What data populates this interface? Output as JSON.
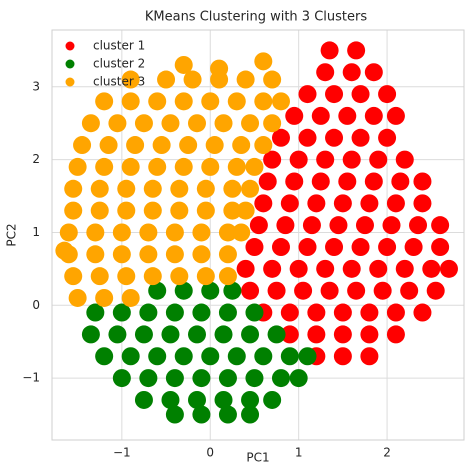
{
  "chart_data": {
    "type": "scatter",
    "title": "KMeans Clustering with 3 Clusters",
    "x_label": "PC1",
    "y_label": "PC2",
    "xlim": [
      -1.79,
      2.87
    ],
    "ylim": [
      -1.85,
      3.78
    ],
    "xticks": [
      {
        "value": -1,
        "label": "−1"
      },
      0,
      1,
      2
    ],
    "yticks": [
      {
        "value": -1,
        "label": "−1"
      },
      0,
      1,
      2,
      3
    ],
    "grid": true,
    "legend": "upper-left",
    "series": [
      {
        "name": "cluster 1",
        "color": "#ff0000",
        "x": [
          1.2,
          1.5,
          1.8,
          0.9,
          1.2,
          1.5,
          1.8,
          2.1,
          0.6,
          0.9,
          1.2,
          1.5,
          1.8,
          2.1,
          2.4,
          0.45,
          0.75,
          1.05,
          1.35,
          1.65,
          1.95,
          2.25,
          2.55,
          0.4,
          0.7,
          1.0,
          1.3,
          1.6,
          1.9,
          2.2,
          2.5,
          2.7,
          0.5,
          0.8,
          1.1,
          1.4,
          1.7,
          2.0,
          2.3,
          2.6,
          0.55,
          0.85,
          1.15,
          1.45,
          1.75,
          2.05,
          2.35,
          2.6,
          0.6,
          0.9,
          1.2,
          1.5,
          1.8,
          2.1,
          2.4,
          0.65,
          0.95,
          1.25,
          1.55,
          1.85,
          2.15,
          2.4,
          0.7,
          1.0,
          1.3,
          1.6,
          1.9,
          2.2,
          0.8,
          1.1,
          1.4,
          1.7,
          2.0,
          0.95,
          1.25,
          1.55,
          1.85,
          2.1,
          1.1,
          1.4,
          1.7,
          2.0,
          1.3,
          1.6,
          1.85,
          1.35,
          1.65
        ],
        "y": [
          -0.7,
          -0.7,
          -0.7,
          -0.4,
          -0.4,
          -0.4,
          -0.4,
          -0.4,
          -0.1,
          -0.1,
          -0.1,
          -0.1,
          -0.1,
          -0.1,
          -0.1,
          0.2,
          0.2,
          0.2,
          0.2,
          0.2,
          0.2,
          0.2,
          0.2,
          0.5,
          0.5,
          0.5,
          0.5,
          0.5,
          0.5,
          0.5,
          0.5,
          0.5,
          0.8,
          0.8,
          0.8,
          0.8,
          0.8,
          0.8,
          0.8,
          0.8,
          1.1,
          1.1,
          1.1,
          1.1,
          1.1,
          1.1,
          1.1,
          1.1,
          1.4,
          1.4,
          1.4,
          1.4,
          1.4,
          1.4,
          1.4,
          1.7,
          1.7,
          1.7,
          1.7,
          1.7,
          1.7,
          1.7,
          2.0,
          2.0,
          2.0,
          2.0,
          2.0,
          2.0,
          2.3,
          2.3,
          2.3,
          2.3,
          2.3,
          2.6,
          2.6,
          2.6,
          2.6,
          2.6,
          2.9,
          2.9,
          2.9,
          2.9,
          3.2,
          3.2,
          3.2,
          3.5,
          3.5
        ]
      },
      {
        "name": "cluster 2",
        "color": "#008000",
        "x": [
          -0.6,
          -0.3,
          0.0,
          0.25,
          -1.3,
          -1.0,
          -0.7,
          -0.4,
          -0.1,
          0.2,
          0.5,
          -1.35,
          -1.05,
          -0.75,
          -0.45,
          -0.15,
          0.15,
          0.45,
          0.75,
          -1.2,
          -0.9,
          -0.6,
          -0.3,
          0.0,
          0.3,
          0.6,
          0.9,
          1.1,
          -1.0,
          -0.7,
          -0.4,
          -0.1,
          0.2,
          0.5,
          0.8,
          1.0,
          -0.75,
          -0.45,
          -0.15,
          0.15,
          0.45,
          0.7,
          -0.4,
          -0.1,
          0.2,
          0.45
        ],
        "y": [
          0.2,
          0.2,
          0.2,
          0.2,
          -0.1,
          -0.1,
          -0.1,
          -0.1,
          -0.1,
          -0.1,
          -0.1,
          -0.4,
          -0.4,
          -0.4,
          -0.4,
          -0.4,
          -0.4,
          -0.4,
          -0.4,
          -0.7,
          -0.7,
          -0.7,
          -0.7,
          -0.7,
          -0.7,
          -0.7,
          -0.7,
          -0.7,
          -1.0,
          -1.0,
          -1.0,
          -1.0,
          -1.0,
          -1.0,
          -1.0,
          -1.0,
          -1.3,
          -1.3,
          -1.3,
          -1.3,
          -1.3,
          -1.3,
          -1.5,
          -1.5,
          -1.5,
          -1.5
        ]
      },
      {
        "name": "cluster 3",
        "color": "#ffa500",
        "x": [
          -1.5,
          -1.2,
          -0.9,
          -1.55,
          -1.25,
          -0.95,
          -0.65,
          -0.35,
          -0.05,
          0.2,
          -1.6,
          -1.3,
          -1.0,
          -0.7,
          -0.4,
          -0.1,
          0.2,
          -1.6,
          -1.3,
          -1.0,
          -0.7,
          -0.4,
          -0.1,
          0.2,
          0.35,
          -1.55,
          -1.25,
          -0.95,
          -0.65,
          -0.35,
          -0.05,
          0.25,
          0.4,
          -1.55,
          -1.25,
          -0.95,
          -0.65,
          -0.35,
          -0.05,
          0.25,
          0.45,
          -1.5,
          -1.2,
          -0.9,
          -0.6,
          -0.3,
          0.0,
          0.3,
          0.5,
          -1.45,
          -1.15,
          -0.85,
          -0.55,
          -0.25,
          0.05,
          0.35,
          0.6,
          -1.35,
          -1.05,
          -0.75,
          -0.45,
          -0.15,
          0.15,
          0.45,
          0.7,
          -1.2,
          -0.9,
          -0.6,
          -0.3,
          0.0,
          0.3,
          0.6,
          0.8,
          -0.9,
          -0.5,
          -0.2,
          0.1,
          0.4,
          0.7,
          -0.3,
          0.1,
          0.6,
          -1.65
        ],
        "y": [
          0.1,
          0.1,
          0.1,
          0.4,
          0.4,
          0.4,
          0.4,
          0.4,
          0.4,
          0.4,
          0.7,
          0.7,
          0.7,
          0.7,
          0.7,
          0.7,
          0.7,
          1.0,
          1.0,
          1.0,
          1.0,
          1.0,
          1.0,
          1.0,
          1.0,
          1.3,
          1.3,
          1.3,
          1.3,
          1.3,
          1.3,
          1.3,
          1.3,
          1.6,
          1.6,
          1.6,
          1.6,
          1.6,
          1.6,
          1.6,
          1.6,
          1.9,
          1.9,
          1.9,
          1.9,
          1.9,
          1.9,
          1.9,
          1.9,
          2.2,
          2.2,
          2.2,
          2.2,
          2.2,
          2.2,
          2.2,
          2.2,
          2.5,
          2.5,
          2.5,
          2.5,
          2.5,
          2.5,
          2.5,
          2.5,
          2.8,
          2.8,
          2.8,
          2.8,
          2.8,
          2.8,
          2.8,
          2.8,
          3.1,
          3.1,
          3.1,
          3.1,
          3.1,
          3.1,
          3.3,
          3.25,
          3.35,
          0.75
        ]
      }
    ]
  }
}
